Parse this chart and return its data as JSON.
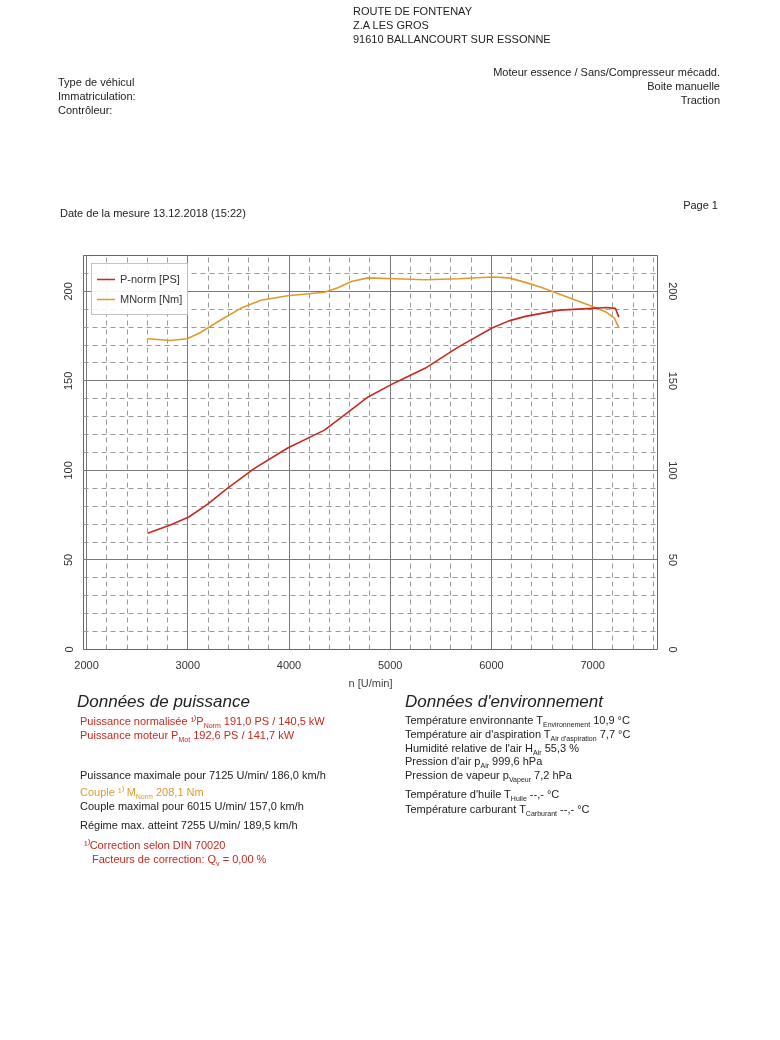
{
  "chart_data": {
    "type": "line",
    "xlabel": "n [U/min]",
    "xlim": [
      1970,
      7640
    ],
    "xticks": [
      2000,
      3000,
      4000,
      5000,
      6000,
      7000
    ],
    "ylim": [
      0,
      220
    ],
    "yticks": [
      0,
      50,
      100,
      150,
      200
    ],
    "y2lim": [
      0,
      220
    ],
    "y2ticks": [
      0,
      50,
      100,
      150,
      200
    ],
    "grid": true,
    "legend": "top left",
    "series": [
      {
        "name": "P-norm [PS]",
        "color": "#c62a1f",
        "x": [
          2610,
          2828,
          3010,
          3193,
          3391,
          3655,
          3987,
          4350,
          4549,
          4781,
          5046,
          5344,
          5675,
          6006,
          6172,
          6336,
          6668,
          6999,
          7131,
          7224,
          7255
        ],
        "values": [
          65,
          69.5,
          74,
          81,
          90,
          101,
          112.5,
          122.5,
          131,
          141,
          149,
          157,
          169,
          179.5,
          183.5,
          186,
          189.5,
          190.5,
          191,
          190.5,
          186
        ]
      },
      {
        "name": "MNorm [Nm]",
        "color": "#e09a2c",
        "axis": "y2",
        "x": [
          2610,
          2828,
          2994,
          3126,
          3325,
          3523,
          3722,
          3987,
          4350,
          4483,
          4616,
          4781,
          5046,
          5344,
          5675,
          6006,
          6172,
          6336,
          6503,
          6668,
          6833,
          6999,
          7131,
          7214,
          7255
        ],
        "values": [
          173.5,
          172.5,
          173.5,
          177,
          184,
          190.5,
          195,
          197.5,
          199.5,
          202,
          205.5,
          207.5,
          207,
          206.5,
          207,
          208,
          207.5,
          205,
          202,
          198.5,
          195,
          191.5,
          188.5,
          185,
          180
        ]
      }
    ],
    "annotations": [
      "ROUTE DE FONTENAY",
      "Z.A LES GROS",
      "91610 BALLANCOURT SUR ESSONNE",
      "Type de véhicul",
      "Immatriculation:",
      "Contrôleur:",
      "Moteur essence / Sans/Compresseur mécadd.",
      "Boite manuelle",
      "Traction",
      "Date de la mesure 13.12.2018 (15:22)",
      "Page 1",
      "Données de puissance",
      "Puissance normalisée ¹⁾P$_{Norm}$ 191,0 PS / 140,5 kW",
      "Puissance moteur P$_{Mot}$ 192,6 PS / 141,7 kW",
      "Puissance maximale pour 7125 U/min/ 186,0 km/h",
      "Couple ¹⁾ M$_{Norm}$ 208,1 Nm",
      "Couple maximal pour 6015 U/min/ 157,0 km/h",
      "Régime max. atteint 7255 U/min/ 189,5 km/h",
      "¹⁾Correction selon DIN 70020",
      "Facteurs de correction: Q$_{v}$ = 0,00 %",
      "Données d'environnement",
      "Température environnante T$_{Environnement}$ 10,9 °C",
      "Température air d'aspiration T$_{Air d'aspiration}$ 7,7 °C",
      "Humidité relative de l'air H$_{Air}$ 55,3 %",
      "Pression d'air p$_{Air}$ 999,6 hPa",
      "Pression de vapeur p$_{Vapeur}$ 7,2 hPa",
      "Température d'huile T$_{Huile}$ --,- °C",
      "Température carburant T$_{Carburant}$ --,- °C"
    ]
  }
}
